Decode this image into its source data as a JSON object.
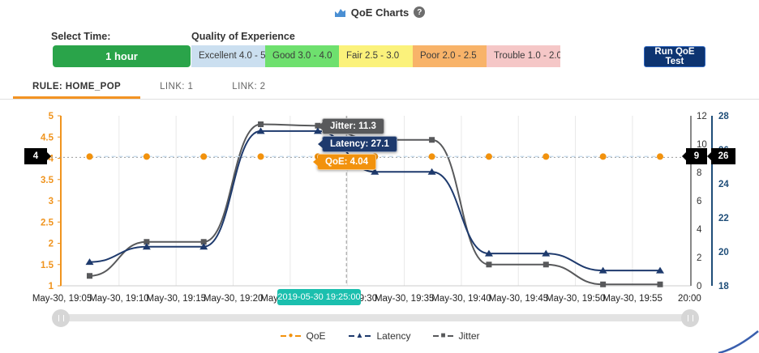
{
  "header": {
    "title": "QoE Charts"
  },
  "controls": {
    "select_time_label": "Select Time:",
    "time_button_label": "1 hour",
    "time_button_color": "#2aa44a",
    "qoe_scale_title": "Quality of Experience",
    "qoe_bands": [
      {
        "label": "Excellent 4.0 - 5.0",
        "color": "#cbdff0"
      },
      {
        "label": "Good 3.0 - 4.0",
        "color": "#6ee06e"
      },
      {
        "label": "Fair 2.5 - 3.0",
        "color": "#fbf27b"
      },
      {
        "label": "Poor 2.0 - 2.5",
        "color": "#f8b369"
      },
      {
        "label": "Trouble 1.0 - 2.0",
        "color": "#f5c7c7"
      }
    ],
    "run_test_button_label": "Run QoE Test"
  },
  "tabs": [
    {
      "label": "RULE: HOME_POP",
      "active": true
    },
    {
      "label": "LINK: 1",
      "active": false
    },
    {
      "label": "LINK: 2",
      "active": false
    }
  ],
  "chart_data": {
    "type": "line",
    "categories": [
      "May-30, 19:05",
      "May-30, 19:10",
      "May-30, 19:15",
      "May-30, 19:20",
      "May-30, 19:25",
      "May-30, 19:30",
      "May-30, 19:35",
      "May-30, 19:40",
      "May-30, 19:45",
      "May-30, 19:50",
      "May-30, 19:55"
    ],
    "x_axis_labels": [
      "May-30, 19:05",
      "May-30, 19:10",
      "May-30, 19:15",
      "May-30, 19:20",
      "May-30, 19:25",
      "May-30, 19:30",
      "May-30, 19:35",
      "May-30, 19:40",
      "May-30, 19:45",
      "May-30, 19:50",
      "May-30, 19:55",
      "20:00"
    ],
    "series": [
      {
        "name": "QoE",
        "axis": "qoe",
        "marker": "circle",
        "marker_color": "#f2920d",
        "line_color": "#c9dcec",
        "line_style": "dashed",
        "values": [
          4.04,
          4.04,
          4.04,
          4.04,
          4.04,
          4.04,
          4.04,
          4.04,
          4.04,
          4.04,
          4.04
        ]
      },
      {
        "name": "Latency",
        "axis": "latency",
        "marker": "triangle",
        "marker_color": "#1e3a6d",
        "line_color": "#1e3a6d",
        "line_style": "solid",
        "values": [
          19.4,
          20.3,
          20.3,
          27.1,
          27.1,
          24.7,
          24.7,
          19.9,
          19.9,
          18.9,
          18.9
        ]
      },
      {
        "name": "Jitter",
        "axis": "jitter",
        "marker": "square",
        "marker_color": "#58595b",
        "line_color": "#58595b",
        "line_style": "solid",
        "values": [
          0.7,
          3.1,
          3.1,
          11.4,
          11.3,
          10.3,
          10.3,
          1.5,
          1.5,
          0.1,
          0.1
        ]
      }
    ],
    "axes": {
      "qoe": {
        "position": "left",
        "min": 1,
        "max": 5,
        "ticks": [
          5,
          4.5,
          4,
          3.5,
          3,
          2.5,
          2,
          1.5,
          1
        ],
        "color": "#f0941e"
      },
      "jitter": {
        "position": "right-inner",
        "min": 0,
        "max": 12,
        "ticks": [
          12,
          10,
          8,
          6,
          4,
          2,
          0
        ],
        "color": "#888888",
        "label_color": "#333333"
      },
      "latency": {
        "position": "right-outer",
        "min": 18,
        "max": 28,
        "ticks": [
          28,
          26,
          24,
          22,
          20,
          18
        ],
        "color": "#1f4e79"
      }
    },
    "grid": true,
    "hover": {
      "x_index": 4,
      "x_badge_label": "2019-05-30 19:25:00",
      "x_badge_color": "#1bbfae",
      "tooltips": [
        {
          "text": "Jitter: 11.3",
          "color": "#58595b"
        },
        {
          "text": "Latency: 27.1",
          "color": "#1e3a6d"
        },
        {
          "text": "QoE: 4.04",
          "color": "#f2920d"
        }
      ],
      "axis_badges": {
        "qoe": "4",
        "jitter": "9",
        "latency": "26"
      }
    }
  },
  "legend": [
    {
      "label": "QoE",
      "glyph": "●",
      "color": "#f2920d"
    },
    {
      "label": "Latency",
      "glyph": "▲",
      "color": "#1e3a6d"
    },
    {
      "label": "Jitter",
      "glyph": "■",
      "color": "#58595b"
    }
  ]
}
